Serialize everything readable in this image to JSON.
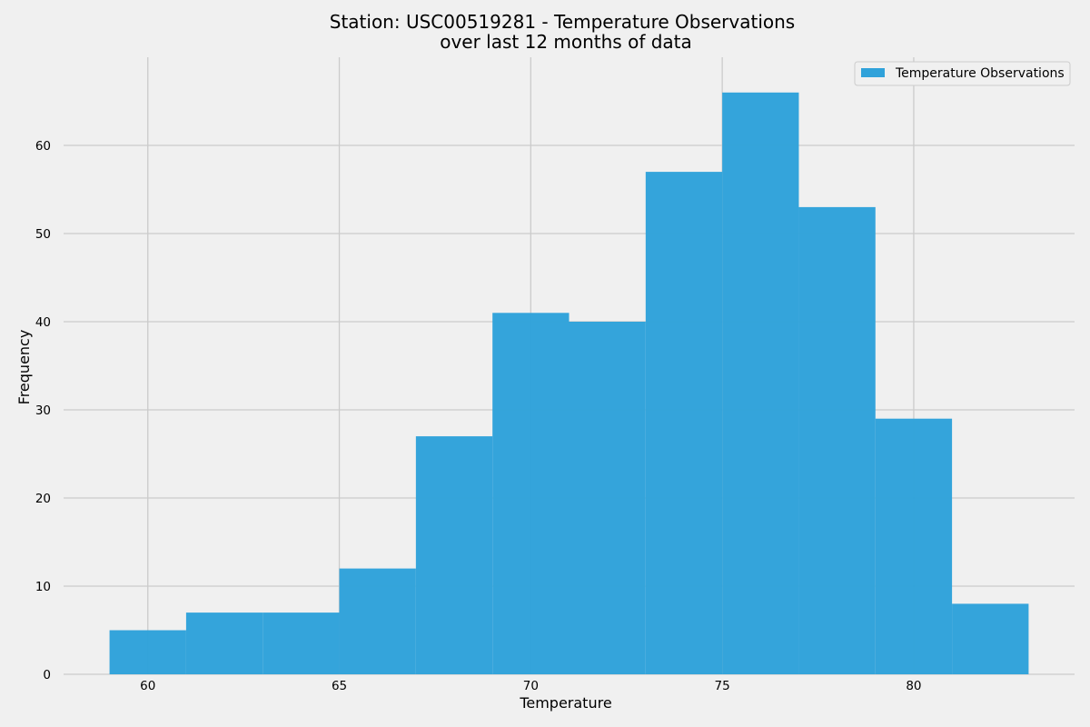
{
  "chart_data": {
    "type": "bar",
    "title": "Station: USC00519281 - Temperature Observations",
    "subtitle": "over last 12 months of data",
    "xlabel": "Temperature",
    "ylabel": "Frequency",
    "bin_edges": [
      59,
      61,
      63,
      65,
      67,
      69,
      71,
      73,
      75,
      77,
      79,
      81,
      83
    ],
    "series": [
      {
        "name": "Temperature Observations",
        "values": [
          5,
          7,
          7,
          12,
          27,
          41,
          40,
          57,
          66,
          53,
          29,
          8
        ]
      }
    ],
    "xlim": [
      57.8,
      84.2
    ],
    "ylim": [
      0,
      70
    ],
    "xticks": [
      60,
      65,
      70,
      75,
      80
    ],
    "yticks": [
      0,
      10,
      20,
      30,
      40,
      50,
      60
    ],
    "grid": true,
    "legend_position": "top-right",
    "colors": {
      "bar": "#30a2da",
      "background": "#f0f0f0",
      "grid": "#cbcbcb"
    }
  }
}
